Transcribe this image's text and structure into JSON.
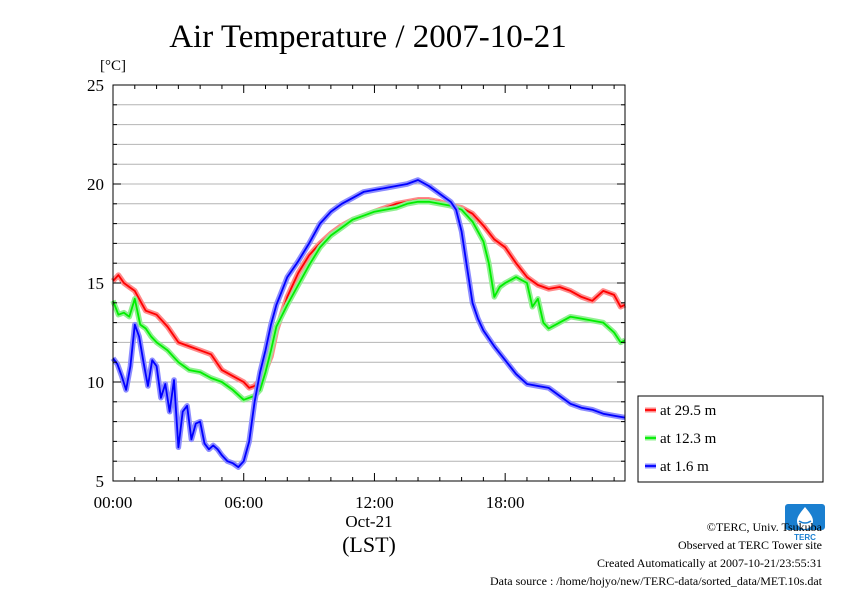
{
  "chart_data": {
    "type": "line",
    "title": "Air Temperature / 2007-10-21",
    "ylabel": "[°C]",
    "xlabel": "(LST)",
    "x_date_label": "Oct-21",
    "x_tick_labels": [
      "00:00",
      "06:00",
      "12:00",
      "18:00"
    ],
    "x_tick_hours": [
      0,
      6,
      12,
      18
    ],
    "xlim": [
      0,
      23.5
    ],
    "ylim": [
      5,
      25
    ],
    "y_ticks": [
      5,
      10,
      15,
      20,
      25
    ],
    "y_minor_step": 1,
    "grid": true,
    "legend_position": "right",
    "series": [
      {
        "name": "at 29.5 m",
        "color": "#ff0000",
        "halo": "#ff8a8a",
        "x": [
          0,
          0.25,
          0.5,
          0.75,
          1,
          1.25,
          1.5,
          1.75,
          2,
          2.5,
          3,
          3.5,
          4,
          4.5,
          5,
          5.5,
          6,
          6.25,
          6.5,
          6.75,
          7,
          7.25,
          7.5,
          8,
          8.5,
          9,
          9.5,
          10,
          10.5,
          11,
          11.5,
          12,
          12.5,
          13,
          13.5,
          14,
          14.5,
          15,
          15.5,
          16,
          16.5,
          17,
          17.5,
          18,
          18.5,
          19,
          19.5,
          20,
          20.5,
          21,
          21.5,
          22,
          22.5,
          23,
          23.3,
          23.5
        ],
        "values": [
          15.1,
          15.4,
          15.0,
          14.8,
          14.6,
          14.1,
          13.6,
          13.5,
          13.4,
          12.8,
          12.0,
          11.8,
          11.6,
          11.4,
          10.6,
          10.3,
          10.0,
          9.7,
          9.8,
          10.1,
          10.6,
          11.3,
          12.6,
          14.3,
          15.5,
          16.4,
          17.0,
          17.5,
          17.9,
          18.2,
          18.4,
          18.6,
          18.8,
          19.0,
          19.1,
          19.2,
          19.2,
          19.1,
          18.9,
          18.8,
          18.5,
          17.9,
          17.2,
          16.8,
          16.0,
          15.3,
          14.9,
          14.7,
          14.8,
          14.6,
          14.3,
          14.1,
          14.6,
          14.4,
          13.8,
          13.9
        ]
      },
      {
        "name": "at 12.3 m",
        "color": "#00ee00",
        "halo": "#90f090",
        "x": [
          0,
          0.25,
          0.5,
          0.75,
          1,
          1.25,
          1.5,
          1.75,
          2,
          2.5,
          3,
          3.5,
          4,
          4.5,
          5,
          5.5,
          6,
          6.25,
          6.5,
          6.75,
          7,
          7.25,
          7.5,
          8,
          8.5,
          9,
          9.5,
          10,
          10.5,
          11,
          11.5,
          12,
          12.5,
          13,
          13.5,
          14,
          14.5,
          15,
          15.5,
          16,
          16.5,
          17,
          17.25,
          17.5,
          17.75,
          18,
          18.5,
          19,
          19.25,
          19.5,
          19.75,
          20,
          20.5,
          21,
          21.5,
          22,
          22.5,
          23,
          23.3,
          23.5
        ],
        "values": [
          14.1,
          13.4,
          13.5,
          13.3,
          14.2,
          12.9,
          12.7,
          12.3,
          12.0,
          11.6,
          11.0,
          10.6,
          10.5,
          10.2,
          10.0,
          9.6,
          9.1,
          9.2,
          9.3,
          9.6,
          10.5,
          11.6,
          12.8,
          13.9,
          14.9,
          15.9,
          16.8,
          17.4,
          17.8,
          18.2,
          18.4,
          18.6,
          18.7,
          18.8,
          19.0,
          19.1,
          19.1,
          19.0,
          18.9,
          18.7,
          18.1,
          17.1,
          16.0,
          14.3,
          14.8,
          15.0,
          15.3,
          15.0,
          13.8,
          14.2,
          13.0,
          12.7,
          13.0,
          13.3,
          13.2,
          13.1,
          13.0,
          12.5,
          12.0,
          12.1
        ]
      },
      {
        "name": "at 1.6 m",
        "color": "#0000ff",
        "halo": "#8c8cff",
        "x": [
          0,
          0.2,
          0.4,
          0.6,
          0.8,
          1,
          1.2,
          1.4,
          1.6,
          1.8,
          2,
          2.2,
          2.4,
          2.6,
          2.8,
          3,
          3.2,
          3.4,
          3.6,
          3.8,
          4,
          4.2,
          4.4,
          4.6,
          4.8,
          5,
          5.25,
          5.5,
          5.75,
          6,
          6.25,
          6.5,
          6.75,
          7,
          7.25,
          7.5,
          7.75,
          8,
          8.5,
          9,
          9.5,
          10,
          10.5,
          11,
          11.5,
          12,
          12.5,
          13,
          13.5,
          14,
          14.5,
          15,
          15.5,
          15.75,
          16,
          16.25,
          16.5,
          16.75,
          17,
          17.5,
          18,
          18.5,
          19,
          19.5,
          20,
          20.5,
          21,
          21.5,
          22,
          22.5,
          23,
          23.5
        ],
        "values": [
          11.2,
          10.9,
          10.3,
          9.6,
          10.8,
          12.9,
          12.3,
          11.0,
          9.8,
          11.1,
          10.8,
          9.2,
          9.9,
          8.5,
          10.1,
          6.7,
          8.5,
          8.8,
          7.1,
          7.9,
          8.0,
          6.9,
          6.6,
          6.8,
          6.6,
          6.3,
          6.0,
          5.9,
          5.7,
          6.0,
          7.0,
          9.0,
          10.5,
          11.6,
          12.9,
          13.9,
          14.6,
          15.3,
          16.1,
          17.0,
          18.0,
          18.6,
          19.0,
          19.3,
          19.6,
          19.7,
          19.8,
          19.9,
          20.0,
          20.2,
          19.9,
          19.5,
          19.1,
          18.7,
          17.6,
          15.8,
          14.0,
          13.2,
          12.6,
          11.8,
          11.1,
          10.4,
          9.9,
          9.8,
          9.7,
          9.3,
          8.9,
          8.7,
          8.6,
          8.4,
          8.3,
          8.2
        ]
      }
    ]
  },
  "footer": {
    "copyright": "©TERC, Univ. Tsukuba",
    "observed": "Observed at TERC Tower site",
    "created": "Created Automatically at 2007-10-21/23:55:31",
    "source": "Data source : /home/hojyo/new/TERC-data/sorted_data/MET.10s.dat"
  },
  "logo": {
    "text": "TERC",
    "color": "#1a7fd0"
  }
}
